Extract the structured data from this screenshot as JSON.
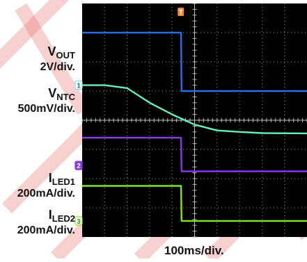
{
  "chart_data": {
    "type": "line",
    "xlabel": "100ms/div.",
    "channel_labels": [
      {
        "name": "V",
        "sub": "OUT",
        "scale": "2V/div.",
        "color": "#2b6fe8"
      },
      {
        "name": "V",
        "sub": "NTC",
        "scale": "500mV/div.",
        "color": "#63f0c8"
      },
      {
        "name": "I",
        "sub": "LED1",
        "scale": "200mA/div.",
        "color": "#8a38e6"
      },
      {
        "name": "I",
        "sub": "LED2",
        "scale": "200mA/div.",
        "color": "#7ee820"
      }
    ],
    "markers": [
      "T",
      "1",
      "2",
      "3"
    ],
    "x_divisions": 10,
    "y_divisions": 8,
    "x_unit": "div",
    "series": [
      {
        "color": "#2b6fe8",
        "x": [
          0,
          4.4,
          4.42,
          10
        ],
        "y": [
          7.0,
          7.0,
          5.0,
          5.0
        ]
      },
      {
        "color": "#63f0c8",
        "x": [
          0,
          1.0,
          2.0,
          3.0,
          4.0,
          5.0,
          6.0,
          7.0,
          8.0,
          10
        ],
        "y": [
          5.2,
          5.2,
          5.1,
          4.6,
          4.2,
          3.85,
          3.65,
          3.6,
          3.56,
          3.55
        ]
      },
      {
        "color": "#8a38e6",
        "x": [
          0,
          4.4,
          4.42,
          10
        ],
        "y": [
          3.4,
          3.4,
          2.25,
          2.25
        ]
      },
      {
        "color": "#7ee820",
        "x": [
          0,
          4.4,
          4.42,
          10
        ],
        "y": [
          1.75,
          1.75,
          0.55,
          0.55
        ]
      }
    ],
    "watermark_color": "#e87878"
  }
}
